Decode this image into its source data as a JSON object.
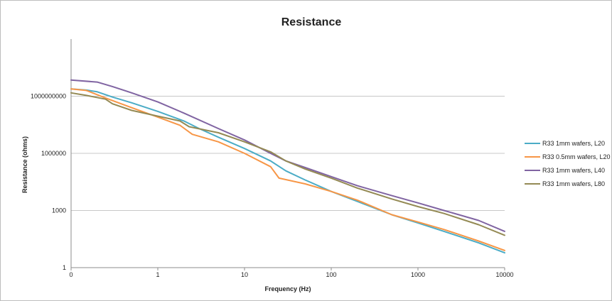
{
  "chart_data": {
    "type": "line",
    "title": "Resistance",
    "xlabel": "Frequency (Hz)",
    "ylabel": "Resistance (ohms)",
    "x_scale": "log",
    "y_scale": "log",
    "x_ticks": [
      {
        "value": 0.1,
        "label": "0"
      },
      {
        "value": 1,
        "label": "1"
      },
      {
        "value": 10,
        "label": "10"
      },
      {
        "value": 100,
        "label": "100"
      },
      {
        "value": 1000,
        "label": "1000"
      },
      {
        "value": 10000,
        "label": "10000"
      }
    ],
    "y_ticks": [
      {
        "value": 1,
        "label": "1"
      },
      {
        "value": 1000,
        "label": "1000"
      },
      {
        "value": 1000000,
        "label": "1000000"
      },
      {
        "value": 1000000000,
        "label": "1000000000"
      }
    ],
    "xlim": [
      0.1,
      10000
    ],
    "ylim": [
      1,
      1000000000000
    ],
    "grid": true,
    "legend_position": "right",
    "series": [
      {
        "name": "R33 1mm wafers, L20",
        "color": "#4bacc6",
        "points": [
          [
            0.1,
            2400000000.0
          ],
          [
            0.15,
            2100000000.0
          ],
          [
            0.2,
            1700000000.0
          ],
          [
            0.3,
            900000000.0
          ],
          [
            0.5,
            450000000.0
          ],
          [
            1,
            160000000.0
          ],
          [
            2,
            50000000.0
          ],
          [
            3,
            20000000.0
          ],
          [
            5,
            7000000.0
          ],
          [
            10,
            1800000.0
          ],
          [
            20,
            400000.0
          ],
          [
            30,
            120000.0
          ],
          [
            50,
            40000.0
          ],
          [
            100,
            10000.0
          ],
          [
            200,
            3000.0
          ],
          [
            500,
            600.0
          ],
          [
            1000,
            220.0
          ],
          [
            2000,
            80.0
          ],
          [
            5000,
            20.0
          ],
          [
            10000,
            6.0
          ]
        ]
      },
      {
        "name": "R33 0.5mm wafers, L20",
        "color": "#f79646",
        "points": [
          [
            0.1,
            2400000000.0
          ],
          [
            0.15,
            2000000000.0
          ],
          [
            0.25,
            800000000.0
          ],
          [
            0.5,
            250000000.0
          ],
          [
            1,
            80000000.0
          ],
          [
            1.8,
            30000000.0
          ],
          [
            2.5,
            10000000.0
          ],
          [
            5,
            4000000.0
          ],
          [
            10,
            1000000.0
          ],
          [
            20,
            200000.0
          ],
          [
            25,
            50000.0
          ],
          [
            50,
            25000.0
          ],
          [
            100,
            10000.0
          ],
          [
            200,
            3500.0
          ],
          [
            500,
            600.0
          ],
          [
            1000,
            250.0
          ],
          [
            2000,
            100.0
          ],
          [
            5000,
            25.0
          ],
          [
            10000,
            8.0
          ]
        ]
      },
      {
        "name": "R33 1mm wafers, L40",
        "color": "#8064a2",
        "points": [
          [
            0.1,
            7000000000.0
          ],
          [
            0.2,
            5500000000.0
          ],
          [
            0.3,
            3200000000.0
          ],
          [
            0.5,
            1500000000.0
          ],
          [
            1,
            500000000.0
          ],
          [
            2,
            130000000.0
          ],
          [
            5,
            20000000.0
          ],
          [
            10,
            5000000.0
          ],
          [
            20,
            1000000.0
          ],
          [
            30,
            400000.0
          ],
          [
            50,
            180000.0
          ],
          [
            100,
            60000.0
          ],
          [
            200,
            20000.0
          ],
          [
            500,
            6000.0
          ],
          [
            1000,
            2500.0
          ],
          [
            2000,
            1000.0
          ],
          [
            5000,
            300.0
          ],
          [
            10000,
            80.0
          ]
        ]
      },
      {
        "name": "R33 1mm wafers, L80",
        "color": "#948a54",
        "points": [
          [
            0.1,
            1500000000.0
          ],
          [
            0.15,
            1100000000.0
          ],
          [
            0.25,
            700000000.0
          ],
          [
            0.3,
            400000000.0
          ],
          [
            0.5,
            180000000.0
          ],
          [
            1,
            90000000.0
          ],
          [
            1.8,
            50000000.0
          ],
          [
            2.3,
            25000000.0
          ],
          [
            5,
            12000000.0
          ],
          [
            10,
            4000000.0
          ],
          [
            20,
            1200000.0
          ],
          [
            30,
            400000.0
          ],
          [
            50,
            150000.0
          ],
          [
            100,
            50000.0
          ],
          [
            200,
            15000.0
          ],
          [
            500,
            4000.0
          ],
          [
            1000,
            1600.0
          ],
          [
            2000,
            700.0
          ],
          [
            5000,
            180.0
          ],
          [
            10000,
            50.0
          ]
        ]
      }
    ]
  }
}
